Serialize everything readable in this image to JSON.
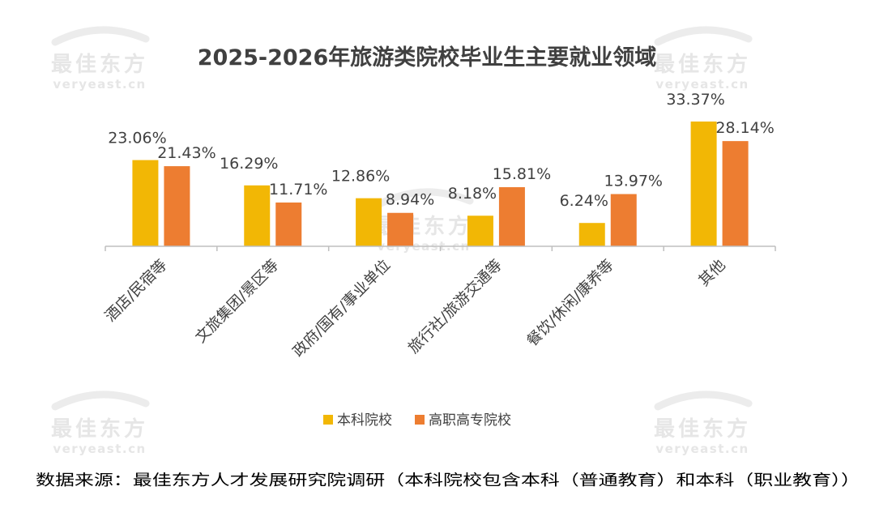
{
  "watermark": {
    "text": "最佳东方",
    "subtext": "veryeast.cn"
  },
  "chart_data": {
    "type": "bar",
    "title": "2025-2026年旅游类院校毕业生主要就业领域",
    "categories": [
      "酒店/民宿等",
      "文旅集团/景区等",
      "政府/国有/事业单位",
      "旅行社/旅游交通等",
      "餐饮/休闲/康养等",
      "其他"
    ],
    "series": [
      {
        "name": "本科院校",
        "color": "#f2b705",
        "values": [
          23.06,
          16.29,
          12.86,
          8.18,
          6.24,
          33.37
        ],
        "labels": [
          "23.06%",
          "16.29%",
          "12.86%",
          "8.18%",
          "6.24%",
          "33.37%"
        ]
      },
      {
        "name": "高职高专院校",
        "color": "#ed7d31",
        "values": [
          21.43,
          11.71,
          8.94,
          15.81,
          13.97,
          28.14
        ],
        "labels": [
          "21.43%",
          "11.71%",
          "8.94%",
          "15.81%",
          "13.97%",
          "28.14%"
        ]
      }
    ],
    "ylim": [
      0,
      35
    ],
    "grid": false,
    "legend": "bottom",
    "xlabel": "",
    "ylabel": ""
  },
  "source": "数据来源：最佳东方人才发展研究院调研（本科院校包含本科（普通教育）和本科（职业教育））"
}
